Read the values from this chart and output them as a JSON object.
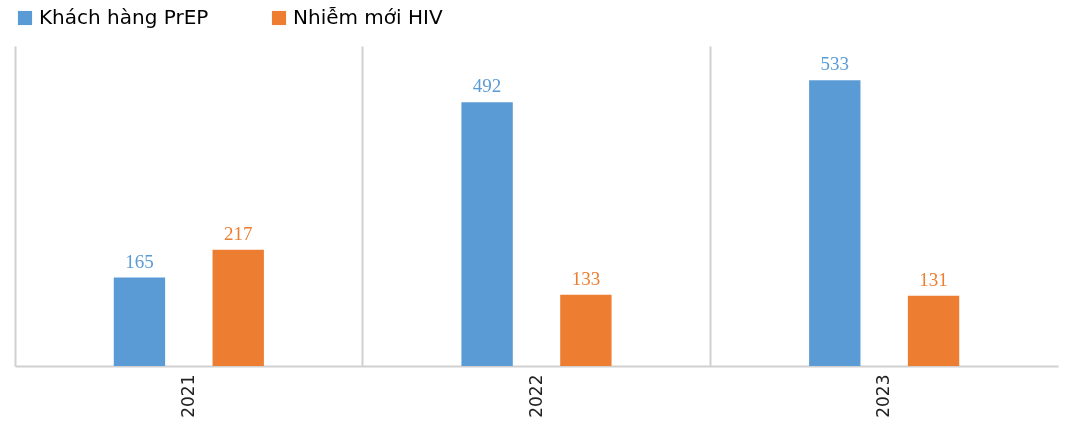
{
  "chart_data": {
    "type": "bar",
    "categories": [
      "2021",
      "2022",
      "2023"
    ],
    "series": [
      {
        "name": "Khách hàng PrEP",
        "color": "#5b9bd5",
        "values": [
          165,
          492,
          533
        ]
      },
      {
        "name": "Nhiễm mới HIV",
        "color": "#ed7d31",
        "values": [
          217,
          133,
          131
        ]
      }
    ],
    "data_labels": true,
    "legend": "top",
    "grid": "x"
  }
}
